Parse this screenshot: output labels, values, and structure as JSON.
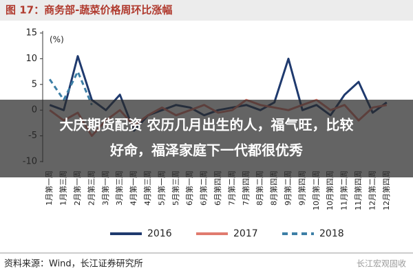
{
  "chart_data": {
    "type": "line",
    "title": "图 17：商务部-蔬菜价格周环比涨幅",
    "y_unit": "(%)",
    "categories": [
      "1月第一周",
      "1月第三周",
      "2月第一周",
      "2月第三周",
      "3月第一周",
      "3月第三周",
      "4月第一周",
      "4月第三周",
      "5月第一周",
      "5月第三周",
      "6月第一周",
      "6月第二周",
      "6月第四周",
      "7月第二周",
      "7月第四周",
      "8月第二周",
      "8月第四周",
      "9月第二周",
      "9月第四周",
      "10月第二周",
      "10月第四周",
      "11月第二周",
      "11月第四周",
      "12月第二周",
      "12月第四周"
    ],
    "series": [
      {
        "name": "2016",
        "color": "#1f3a6e",
        "dashed": false,
        "values": [
          1,
          0,
          10.5,
          2,
          0,
          3,
          -4,
          -1,
          0,
          1,
          0.5,
          -1,
          0,
          0.5,
          1,
          0,
          1.5,
          10,
          0,
          1,
          -1,
          3,
          5.5,
          -0.5,
          1.5
        ]
      },
      {
        "name": "2017",
        "color": "#e07b6f",
        "dashed": false,
        "values": [
          0,
          -2,
          -0.5,
          -5,
          -2,
          0,
          -3,
          -1,
          0.5,
          -1,
          0,
          1,
          -0.5,
          0,
          2,
          1,
          0.5,
          0,
          1,
          2,
          0,
          1,
          -2,
          0.5,
          1
        ]
      },
      {
        "name": "2018",
        "color": "#3d7fa6",
        "dashed": true,
        "values": [
          6,
          2,
          7.5,
          1,
          null,
          null,
          null,
          null,
          null,
          null,
          null,
          null,
          null,
          null,
          null,
          null,
          null,
          null,
          null,
          null,
          null,
          null,
          null,
          null,
          null
        ]
      }
    ],
    "ylim": [
      -10,
      15
    ],
    "yticks": [
      -10,
      -5,
      0,
      5,
      10,
      15
    ],
    "grid": false,
    "legend": "bottom",
    "source": "资料来源：Wind，长江证券研究所",
    "watermark": "长江宏观固收",
    "overlay_text": [
      "大庆期货配资 农历几月出生的人，福气旺，比较",
      "好命，福泽家庭下一代都很优秀"
    ]
  }
}
